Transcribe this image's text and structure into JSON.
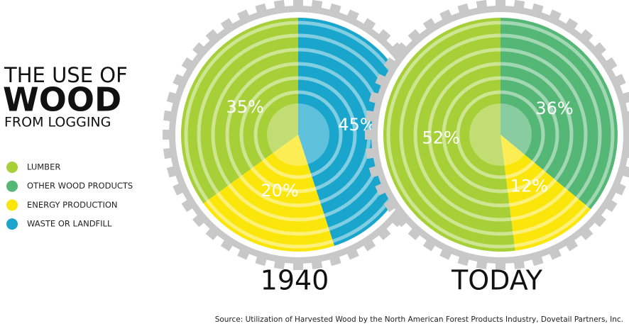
{
  "title": [
    "THE USE OF",
    "WOOD",
    "FROM LOGGING"
  ],
  "legend": [
    {
      "label": "LUMBER",
      "color": "#a6cf38"
    },
    {
      "label": "OTHER WOOD PRODUCTS",
      "color": "#55b776"
    },
    {
      "label": "ENERGY PRODUCTION",
      "color": "#fbe60c"
    },
    {
      "label": "WASTE OR LANDFILL",
      "color": "#1aa6cc"
    }
  ],
  "chart_data": [
    {
      "type": "pie",
      "title": "1940",
      "categories": [
        "WASTE OR LANDFILL",
        "ENERGY PRODUCTION",
        "LUMBER"
      ],
      "values": [
        45,
        20,
        35
      ],
      "value_labels": [
        "45%",
        "20%",
        "35%"
      ],
      "colors": [
        "#1aa6cc",
        "#fbe60c",
        "#a6cf38"
      ]
    },
    {
      "type": "pie",
      "title": "TODAY",
      "categories": [
        "OTHER WOOD PRODUCTS",
        "ENERGY PRODUCTION",
        "LUMBER"
      ],
      "values": [
        36,
        12,
        52
      ],
      "value_labels": [
        "36%",
        "12%",
        "52%"
      ],
      "colors": [
        "#55b776",
        "#fbe60c",
        "#a6cf38"
      ]
    }
  ],
  "source": "Source: Utilization of Harvested Wood by the North American Forest Products Industry, Dovetail Partners, Inc."
}
